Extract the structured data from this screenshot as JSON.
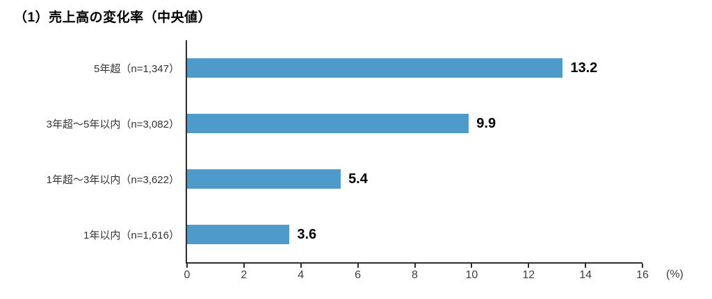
{
  "title": "（1）売上高の変化率（中央値）",
  "chart_data": {
    "type": "bar",
    "orientation": "horizontal",
    "title": "（1）売上高の変化率（中央値）",
    "categories": [
      "5年超（n=1,347）",
      "3年超～5年以内（n=3,082）",
      "1年超～3年以内（n=3,622）",
      "1年以内（n=1,616）"
    ],
    "values": [
      13.2,
      9.9,
      5.4,
      3.6
    ],
    "value_labels": [
      "13.2",
      "9.9",
      "5.4",
      "3.6"
    ],
    "xlabel": "",
    "ylabel": "",
    "xlim": [
      0,
      16
    ],
    "x_ticks": [
      "0",
      "2",
      "4",
      "6",
      "8",
      "10",
      "12",
      "14",
      "16"
    ],
    "x_unit_label": "(%)",
    "bar_color": "#4E9ACB",
    "axis_color": "#2b2b2b",
    "grid": false,
    "legend": "none"
  }
}
